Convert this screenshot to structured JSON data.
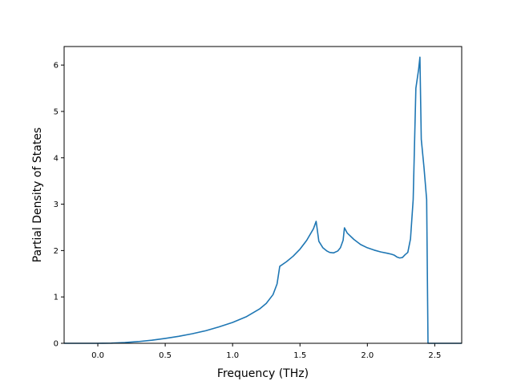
{
  "chart_data": {
    "type": "line",
    "title": "",
    "xlabel": "Frequency (THz)",
    "ylabel": "Partial Density of States",
    "xlim": [
      -0.25,
      2.7
    ],
    "ylim": [
      0,
      6.4
    ],
    "xticks": [
      0.0,
      0.5,
      1.0,
      1.5,
      2.0,
      2.5
    ],
    "xtick_labels": [
      "0.0",
      "0.5",
      "1.0",
      "1.5",
      "2.0",
      "2.5"
    ],
    "yticks": [
      0,
      1,
      2,
      3,
      4,
      5,
      6
    ],
    "ytick_labels": [
      "0",
      "1",
      "2",
      "3",
      "4",
      "5",
      "6"
    ],
    "grid": false,
    "legend": "none",
    "series": [
      {
        "color": "#1f77b4",
        "x": [
          -0.25,
          0.0,
          0.1,
          0.2,
          0.3,
          0.4,
          0.5,
          0.6,
          0.7,
          0.8,
          0.9,
          1.0,
          1.1,
          1.2,
          1.25,
          1.3,
          1.33,
          1.35,
          1.4,
          1.45,
          1.5,
          1.55,
          1.6,
          1.62,
          1.64,
          1.67,
          1.7,
          1.72,
          1.75,
          1.78,
          1.8,
          1.82,
          1.83,
          1.85,
          1.9,
          1.95,
          2.0,
          2.05,
          2.1,
          2.15,
          2.18,
          2.2,
          2.22,
          2.24,
          2.26,
          2.28,
          2.3,
          2.32,
          2.34,
          2.36,
          2.38,
          2.39,
          2.4,
          2.42,
          2.44,
          2.45,
          2.46,
          2.5,
          2.7
        ],
        "y": [
          0,
          0,
          0.004,
          0.016,
          0.037,
          0.066,
          0.105,
          0.15,
          0.205,
          0.27,
          0.355,
          0.45,
          0.57,
          0.74,
          0.86,
          1.05,
          1.28,
          1.66,
          1.76,
          1.88,
          2.03,
          2.22,
          2.47,
          2.63,
          2.2,
          2.06,
          1.99,
          1.96,
          1.95,
          1.99,
          2.06,
          2.22,
          2.49,
          2.38,
          2.24,
          2.13,
          2.06,
          2.01,
          1.97,
          1.94,
          1.92,
          1.9,
          1.86,
          1.84,
          1.85,
          1.91,
          1.96,
          2.25,
          3.1,
          5.5,
          5.9,
          6.17,
          4.4,
          3.8,
          3.1,
          0,
          0,
          0,
          0
        ]
      }
    ]
  }
}
